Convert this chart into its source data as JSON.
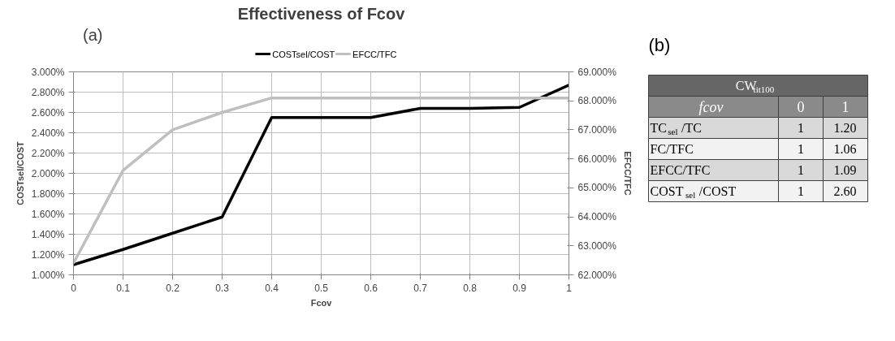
{
  "chart_data": [
    {
      "type": "line",
      "title": "Effectiveness of Fcov",
      "annotations": [
        "(a)"
      ],
      "xlabel": "Fcov",
      "ylabel": "COSTsel/COST",
      "y2label": "EFCC/TFC",
      "x": [
        0,
        0.1,
        0.2,
        0.3,
        0.4,
        0.5,
        0.6,
        0.7,
        0.8,
        0.9,
        1
      ],
      "series": [
        {
          "name": "COSTsel/COST",
          "color": "#000000",
          "values": [
            1.1,
            1.25,
            1.41,
            1.57,
            2.55,
            2.55,
            2.55,
            2.64,
            2.64,
            2.65,
            2.87
          ]
        },
        {
          "name": "EFCC/TFC",
          "color": "#bfbfbf",
          "axis": "y2",
          "values": [
            62.4,
            65.6,
            67.0,
            67.6,
            68.1,
            68.1,
            68.1,
            68.1,
            68.1,
            68.1,
            68.1
          ]
        }
      ],
      "xlim": [
        0,
        1
      ],
      "xticks": [
        0,
        0.1,
        0.2,
        0.3,
        0.4,
        0.5,
        0.6,
        0.7,
        0.8,
        0.9,
        1
      ],
      "ylim": [
        1,
        3
      ],
      "yticks": [
        {
          "value": 1,
          "label": "1.000%"
        },
        {
          "value": 1.2,
          "label": "1.200%"
        },
        {
          "value": 1.4,
          "label": "1.400%"
        },
        {
          "value": 1.6,
          "label": "1.600%"
        },
        {
          "value": 1.8,
          "label": "1.800%"
        },
        {
          "value": 2,
          "label": "2.000%"
        },
        {
          "value": 2.2,
          "label": "2.200%"
        },
        {
          "value": 2.4,
          "label": "2.400%"
        },
        {
          "value": 2.6,
          "label": "2.600%"
        },
        {
          "value": 2.8,
          "label": "2.800%"
        },
        {
          "value": 3,
          "label": "3.000%"
        }
      ],
      "y2lim": [
        62,
        69
      ],
      "y2ticks": [
        {
          "value": 62,
          "label": "62.000%"
        },
        {
          "value": 63,
          "label": "63.000%"
        },
        {
          "value": 64,
          "label": "64.000%"
        },
        {
          "value": 65,
          "label": "65.000%"
        },
        {
          "value": 66,
          "label": "66.000%"
        },
        {
          "value": 67,
          "label": "67.000%"
        },
        {
          "value": 68,
          "label": "68.000%"
        },
        {
          "value": 69,
          "label": "69.000%"
        }
      ],
      "grid": true,
      "legend": "top",
      "marker": "none",
      "line_style": "solid"
    },
    {
      "type": "other",
      "title": "(b)",
      "annotations": [
        "CW$_{tit100}$",
        "fcov",
        "0",
        "1",
        "TC$_{sel}$/TC",
        "1",
        "1.20",
        "FC/TFC",
        "1",
        "1.06",
        "EFCC/TFC",
        "1",
        "1.09",
        "COST$_{sel}$/COST",
        "1",
        "2.60"
      ]
    }
  ]
}
